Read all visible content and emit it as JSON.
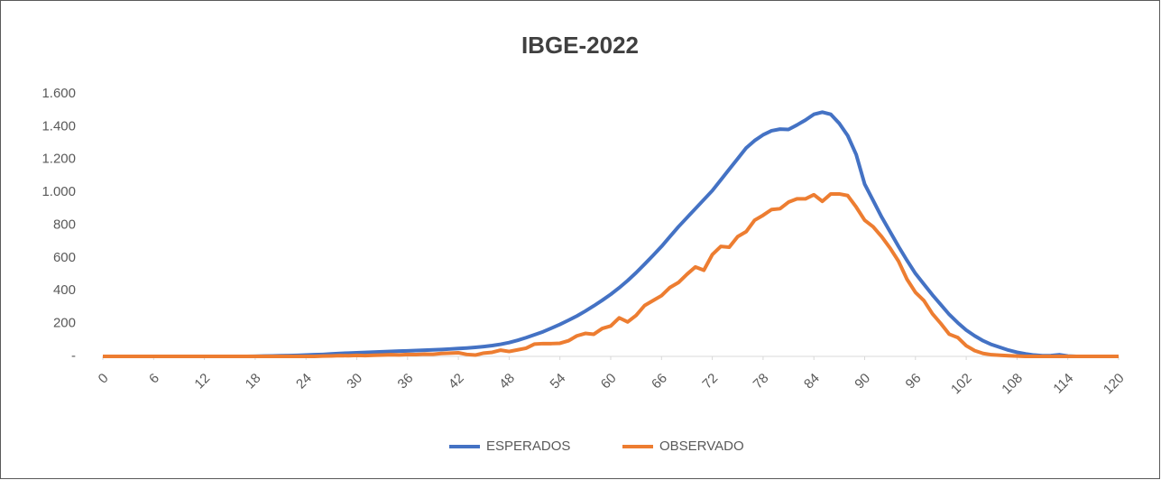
{
  "chart_data": {
    "type": "line",
    "title": "IBGE-2022",
    "x": [
      0,
      1,
      2,
      3,
      4,
      5,
      6,
      7,
      8,
      9,
      10,
      11,
      12,
      13,
      14,
      15,
      16,
      17,
      18,
      19,
      20,
      21,
      22,
      23,
      24,
      25,
      26,
      27,
      28,
      29,
      30,
      31,
      32,
      33,
      34,
      35,
      36,
      37,
      38,
      39,
      40,
      41,
      42,
      43,
      44,
      45,
      46,
      47,
      48,
      49,
      50,
      51,
      52,
      53,
      54,
      55,
      56,
      57,
      58,
      59,
      60,
      61,
      62,
      63,
      64,
      65,
      66,
      67,
      68,
      69,
      70,
      71,
      72,
      73,
      74,
      75,
      76,
      77,
      78,
      79,
      80,
      81,
      82,
      83,
      84,
      85,
      86,
      87,
      88,
      89,
      90,
      91,
      92,
      93,
      94,
      95,
      96,
      97,
      98,
      99,
      100,
      101,
      102,
      103,
      104,
      105,
      106,
      107,
      108,
      109,
      110,
      111,
      112,
      113,
      114,
      115,
      116,
      117,
      118,
      119,
      120
    ],
    "series": [
      {
        "name": "ESPERADOS",
        "color": "#4472c4",
        "values": [
          0,
          0,
          0,
          0,
          0,
          0,
          0,
          0,
          0,
          0,
          0,
          0,
          0,
          0,
          0,
          0,
          0,
          0,
          1,
          2,
          3,
          4,
          5,
          6,
          8,
          10,
          12,
          15,
          18,
          20,
          22,
          24,
          26,
          28,
          30,
          32,
          34,
          36,
          38,
          40,
          42,
          45,
          48,
          51,
          55,
          60,
          66,
          74,
          84,
          98,
          114,
          132,
          150,
          172,
          195,
          220,
          246,
          276,
          308,
          342,
          378,
          418,
          462,
          510,
          562,
          615,
          670,
          730,
          790,
          845,
          900,
          955,
          1010,
          1075,
          1140,
          1205,
          1270,
          1315,
          1350,
          1375,
          1385,
          1383,
          1410,
          1440,
          1475,
          1488,
          1475,
          1420,
          1345,
          1230,
          1050,
          950,
          850,
          760,
          670,
          585,
          505,
          440,
          375,
          315,
          255,
          205,
          160,
          125,
          95,
          72,
          55,
          38,
          25,
          15,
          8,
          4,
          5,
          10,
          2,
          0,
          0,
          0,
          0,
          0,
          0
        ]
      },
      {
        "name": "OBSERVADO",
        "color": "#ed7d31",
        "values": [
          0,
          0,
          0,
          0,
          0,
          0,
          0,
          0,
          0,
          0,
          0,
          0,
          0,
          0,
          0,
          0,
          0,
          0,
          0,
          0,
          0,
          0,
          0,
          0,
          0,
          0,
          2,
          3,
          5,
          4,
          6,
          5,
          7,
          8,
          10,
          9,
          12,
          11,
          14,
          13,
          18,
          20,
          22,
          12,
          8,
          20,
          25,
          38,
          30,
          40,
          50,
          75,
          78,
          78,
          80,
          95,
          125,
          140,
          135,
          170,
          185,
          235,
          210,
          250,
          310,
          340,
          370,
          420,
          450,
          500,
          545,
          525,
          620,
          670,
          665,
          730,
          760,
          830,
          860,
          895,
          900,
          940,
          960,
          960,
          985,
          945,
          990,
          990,
          980,
          910,
          830,
          790,
          730,
          660,
          580,
          470,
          390,
          340,
          260,
          200,
          135,
          115,
          65,
          35,
          18,
          10,
          7,
          4,
          2,
          0,
          0,
          0,
          0,
          0,
          0,
          0,
          0,
          0,
          0,
          0,
          0
        ]
      }
    ],
    "xlim": [
      0,
      120
    ],
    "xticks": [
      0,
      6,
      12,
      18,
      24,
      30,
      36,
      42,
      48,
      54,
      60,
      66,
      72,
      78,
      84,
      90,
      96,
      102,
      108,
      114,
      120
    ],
    "ylim": [
      0,
      1600
    ],
    "yticks": [
      {
        "value": 0,
        "label": "-"
      },
      200,
      400,
      600,
      800,
      {
        "value": 1000,
        "label": "1.000"
      },
      {
        "value": 1200,
        "label": "1.200"
      },
      {
        "value": 1400,
        "label": "1.400"
      },
      {
        "value": 1600,
        "label": "1.600"
      }
    ],
    "legend": "bottom",
    "grid": false
  }
}
